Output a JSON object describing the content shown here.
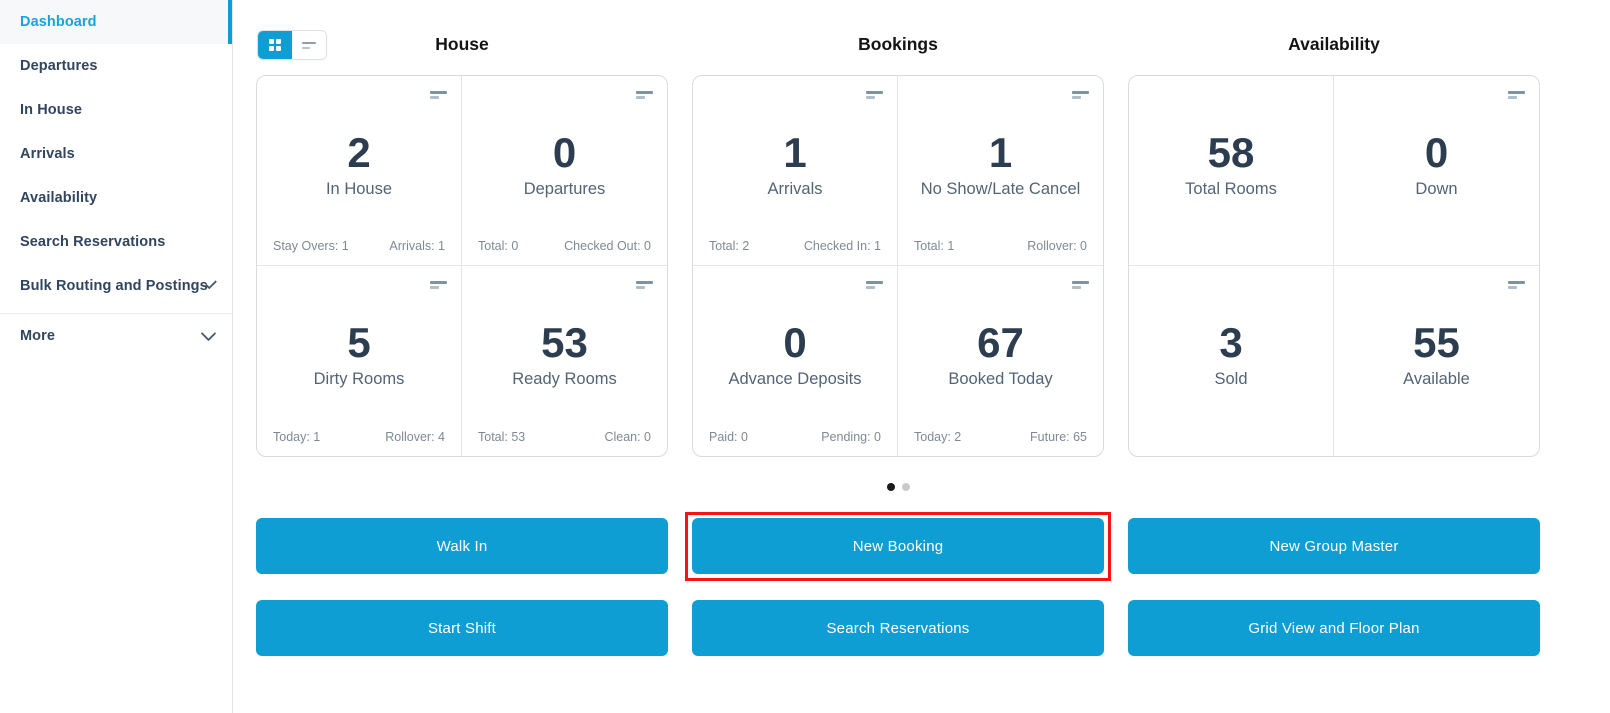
{
  "colors": {
    "accent": "#0f9ed4",
    "active_link": "#1aa3d9",
    "highlight_border": "#f51414",
    "dot_active": "#1a1a1a",
    "dot_inactive": "#c9c9c9"
  },
  "icons": {
    "view_grid": "grid-icon",
    "view_list": "list-lines-icon",
    "card_menu": "menu-lines-icon",
    "expand": "chevron-down-icon"
  },
  "sidebar": {
    "items": [
      {
        "label": "Dashboard",
        "active": true
      },
      {
        "label": "Departures"
      },
      {
        "label": "In House"
      },
      {
        "label": "Arrivals"
      },
      {
        "label": "Availability"
      },
      {
        "label": "Search Reservations"
      },
      {
        "label": "Bulk Routing and Postings",
        "expandable": true
      },
      {
        "label": "More",
        "expandable": true,
        "separator_above": true
      }
    ]
  },
  "sections": [
    {
      "title": "House",
      "cards": [
        {
          "value": "2",
          "label": "In House",
          "stat_left": "Stay Overs: 1",
          "stat_right": "Arrivals: 1"
        },
        {
          "value": "0",
          "label": "Departures",
          "stat_left": "Total: 0",
          "stat_right": "Checked Out: 0"
        },
        {
          "value": "5",
          "label": "Dirty Rooms",
          "stat_left": "Today: 1",
          "stat_right": "Rollover: 4"
        },
        {
          "value": "53",
          "label": "Ready Rooms",
          "stat_left": "Total: 53",
          "stat_right": "Clean: 0"
        }
      ]
    },
    {
      "title": "Bookings",
      "cards": [
        {
          "value": "1",
          "label": "Arrivals",
          "stat_left": "Total: 2",
          "stat_right": "Checked In: 1"
        },
        {
          "value": "1",
          "label": "No Show/Late Cancel",
          "stat_left": "Total: 1",
          "stat_right": "Rollover: 0"
        },
        {
          "value": "0",
          "label": "Advance Deposits",
          "stat_left": "Paid: 0",
          "stat_right": "Pending: 0"
        },
        {
          "value": "67",
          "label": "Booked Today",
          "stat_left": "Today: 2",
          "stat_right": "Future: 65"
        }
      ]
    },
    {
      "title": "Availability",
      "cards": [
        {
          "value": "58",
          "label": "Total Rooms"
        },
        {
          "value": "0",
          "label": "Down"
        },
        {
          "value": "3",
          "label": "Sold"
        },
        {
          "value": "55",
          "label": "Available"
        }
      ]
    }
  ],
  "pagination": {
    "dots": [
      {
        "active": true
      },
      {
        "active": false
      }
    ]
  },
  "actions": {
    "buttons": [
      {
        "label": "Walk In"
      },
      {
        "label": "New Booking",
        "highlighted": true
      },
      {
        "label": "New Group Master"
      },
      {
        "label": "Start Shift"
      },
      {
        "label": "Search Reservations"
      },
      {
        "label": "Grid View and Floor Plan"
      }
    ]
  }
}
